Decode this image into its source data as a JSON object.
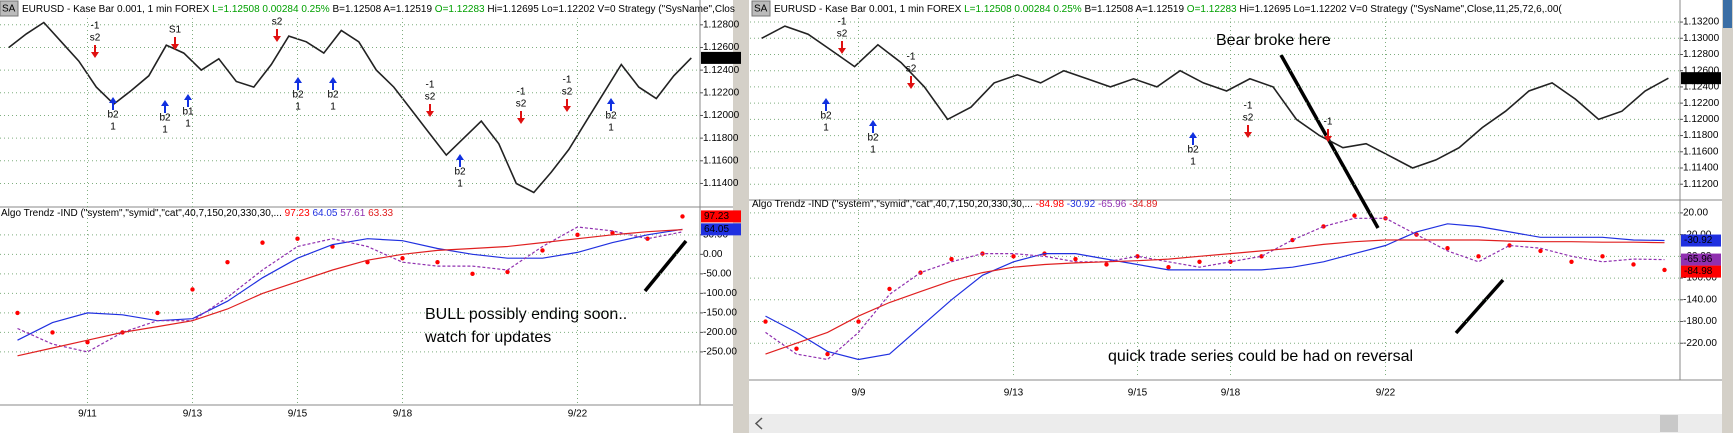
{
  "panels": [
    {
      "header": {
        "badge": "SA",
        "symbol": "EURUSD - Kase Bar 0.001, 1 min  FOREX",
        "last": "L=1.12508  0.00284  0.25%",
        "bidask": "B=1.12508  A=1.12519",
        "open": "O=1.12283",
        "rest": "Hi=1.12695  Lo=1.12202  V=0  Strategy (\"SysName\",Clos"
      },
      "price": {
        "type": "line",
        "color": "#222222",
        "ylim": [
          1.1121,
          1.1286
        ],
        "yticks": [
          {
            "value": 1.128,
            "label": "1.12800"
          },
          {
            "value": 1.126,
            "label": "1.12600"
          },
          {
            "value": 1.124,
            "label": "1.12400"
          },
          {
            "value": 1.122,
            "label": "1.12200"
          },
          {
            "value": 1.12,
            "label": "1.12000"
          },
          {
            "value": 1.118,
            "label": "1.11800"
          },
          {
            "value": 1.116,
            "label": "1.11600"
          },
          {
            "value": 1.114,
            "label": "1.11400"
          }
        ],
        "values": [
          1.126,
          1.1272,
          1.1282,
          1.1265,
          1.1248,
          1.1225,
          1.121,
          1.1222,
          1.1235,
          1.1262,
          1.1255,
          1.124,
          1.125,
          1.123,
          1.1225,
          1.1245,
          1.127,
          1.1265,
          1.1255,
          1.1275,
          1.1265,
          1.124,
          1.1225,
          1.1205,
          1.1185,
          1.1165,
          1.118,
          1.1195,
          1.1175,
          1.114,
          1.1132,
          1.115,
          1.117,
          1.1195,
          1.122,
          1.1245,
          1.1225,
          1.1215,
          1.1235,
          1.12508
        ]
      },
      "indicator": {
        "type": "line",
        "title": "Algo Trendz -IND (\"system\",\"symid\",\"cat\",40,7,150,20,330,30,...",
        "grid": true,
        "ylim": [
          -386,
          88
        ],
        "yticks": [
          {
            "value": 50,
            "label": "50.00"
          },
          {
            "value": 0,
            "label": "0.00"
          },
          {
            "value": -50,
            "label": "-50.00"
          },
          {
            "value": -100,
            "label": "-100.00"
          },
          {
            "value": -150,
            "label": "-150.00"
          },
          {
            "value": -200,
            "label": "-200.00"
          },
          {
            "value": -250,
            "label": "-250.00"
          }
        ],
        "categories": [
          null,
          null,
          "9/11",
          null,
          null,
          "9/13",
          null,
          null,
          "9/15",
          null,
          null,
          "9/18",
          null,
          null,
          null,
          null,
          "9/22",
          null,
          null,
          null
        ],
        "series": [
          {
            "name": "97.23",
            "color": "#ff0000",
            "style": "dots",
            "axis_box": true,
            "values": [
              -150,
              -200,
              -225,
              -200,
              -150,
              -90,
              -20,
              30,
              40,
              20,
              -20,
              -10,
              -20,
              -50,
              -45,
              10,
              50,
              55,
              40,
              97.23
            ]
          },
          {
            "name": "64.05",
            "color": "#2030e0",
            "style": "solid",
            "axis_box": true,
            "values": [
              -220,
              -175,
              -150,
              -155,
              -170,
              -165,
              -120,
              -60,
              -10,
              25,
              40,
              35,
              15,
              0,
              -10,
              -10,
              5,
              30,
              50,
              64.05
            ]
          },
          {
            "name": "57.61",
            "color": "#9030b0",
            "style": "dashed",
            "axis_box": false,
            "values": [
              -190,
              -230,
              -250,
              -200,
              -170,
              -170,
              -110,
              -40,
              20,
              40,
              20,
              -20,
              -30,
              -30,
              -40,
              20,
              70,
              60,
              40,
              57.61
            ]
          },
          {
            "name": "63.33",
            "color": "#e02020",
            "style": "solid",
            "axis_box": false,
            "values": [
              -260,
              -240,
              -220,
              -200,
              -185,
              -170,
              -140,
              -100,
              -70,
              -40,
              -15,
              0,
              10,
              15,
              20,
              30,
              40,
              50,
              58,
              63.33
            ]
          }
        ]
      },
      "annotations": [
        "BULL possibly ending soon..",
        "watch for updates"
      ],
      "signals": [
        [
          "-1",
          "s2"
        ],
        [
          "S1"
        ],
        [
          "s2"
        ],
        [
          "b2",
          "1"
        ],
        [
          "b2",
          "1"
        ],
        [
          "b1",
          "1"
        ],
        [
          "b2",
          "1"
        ],
        [
          "b2",
          "1"
        ],
        [
          "-1",
          "s2"
        ],
        [
          "b2",
          "1"
        ],
        [
          "-1",
          "s2"
        ],
        [
          "-1",
          "s2"
        ],
        [
          "b2",
          "1"
        ]
      ]
    },
    {
      "header": {
        "badge": "SA",
        "symbol": "EURUSD - Kase Bar 0.001, 1 min  FOREX",
        "last": "L=1.12508  0.00284  0.25%",
        "bidask": "B=1.12508  A=1.12519",
        "open": "O=1.12283",
        "rest": "Hi=1.12695  Lo=1.12202  V=0  Strategy (\"SysName\",Close,11,25,72,6,.00("
      },
      "price": {
        "type": "line",
        "color": "#222222",
        "ylim": [
          1.1103,
          1.1325
        ],
        "yticks": [
          {
            "value": 1.132,
            "label": "1.13200"
          },
          {
            "value": 1.13,
            "label": "1.13000"
          },
          {
            "value": 1.128,
            "label": "1.12800"
          },
          {
            "value": 1.126,
            "label": "1.12600"
          },
          {
            "value": 1.124,
            "label": "1.12400"
          },
          {
            "value": 1.122,
            "label": "1.12200"
          },
          {
            "value": 1.12,
            "label": "1.12000"
          },
          {
            "value": 1.118,
            "label": "1.11800"
          },
          {
            "value": 1.116,
            "label": "1.11600"
          },
          {
            "value": 1.114,
            "label": "1.11400"
          },
          {
            "value": 1.112,
            "label": "1.11200"
          }
        ],
        "values": [
          1.13,
          1.1315,
          1.1305,
          1.1285,
          1.1265,
          1.1292,
          1.127,
          1.124,
          1.12,
          1.1215,
          1.1245,
          1.1255,
          1.1245,
          1.126,
          1.125,
          1.124,
          1.125,
          1.124,
          1.126,
          1.1245,
          1.1235,
          1.125,
          1.124,
          1.12,
          1.118,
          1.1165,
          1.117,
          1.1155,
          1.114,
          1.115,
          1.1165,
          1.119,
          1.121,
          1.1235,
          1.1245,
          1.1225,
          1.12,
          1.121,
          1.1235,
          1.12508
        ]
      },
      "indicator": {
        "type": "line",
        "title": "Algo Trendz -IND (\"system\",\"symid\",\"cat\",40,7,150,20,330,30,...",
        "grid": true,
        "ylim": [
          -284,
          29
        ],
        "yticks": [
          {
            "value": 20,
            "label": "20.00"
          },
          {
            "value": -20,
            "label": "-20.00"
          },
          {
            "value": -60,
            "label": "-60.00"
          },
          {
            "value": -100,
            "label": "-100.00"
          },
          {
            "value": -140,
            "label": "-140.00"
          },
          {
            "value": -180,
            "label": "-180.00"
          },
          {
            "value": -220,
            "label": "-220.00"
          }
        ],
        "categories": [
          null,
          null,
          null,
          "9/9",
          null,
          null,
          null,
          null,
          "9/13",
          null,
          null,
          null,
          "9/15",
          null,
          null,
          "9/18",
          null,
          null,
          null,
          null,
          "9/22",
          null,
          null,
          null,
          null,
          null,
          null,
          null,
          null,
          null
        ],
        "series": [
          {
            "name": "-84.98",
            "color": "#ff0000",
            "style": "dots",
            "axis_box": true,
            "values": [
              -180,
              -230,
              -240,
              -180,
              -120,
              -90,
              -65,
              -55,
              -60,
              -55,
              -65,
              -75,
              -60,
              -80,
              -70,
              -70,
              -60,
              -30,
              -5,
              15,
              10,
              -20,
              -45,
              -60,
              -40,
              -50,
              -70,
              -60,
              -75,
              -84.98
            ]
          },
          {
            "name": "-30.92",
            "color": "#2030e0",
            "style": "solid",
            "axis_box": true,
            "values": [
              -170,
              -200,
              -235,
              -250,
              -240,
              -190,
              -140,
              -95,
              -70,
              -55,
              -55,
              -65,
              -75,
              -85,
              -85,
              -85,
              -85,
              -80,
              -70,
              -55,
              -40,
              -15,
              0,
              -5,
              -15,
              -25,
              -25,
              -25,
              -30,
              -30.92
            ]
          },
          {
            "name": "-65.96",
            "color": "#9030b0",
            "style": "dashed",
            "axis_box": true,
            "values": [
              -200,
              -240,
              -250,
              -200,
              -130,
              -90,
              -70,
              -55,
              -55,
              -60,
              -70,
              -70,
              -60,
              -70,
              -80,
              -70,
              -60,
              -30,
              -5,
              10,
              10,
              -20,
              -50,
              -70,
              -40,
              -45,
              -60,
              -70,
              -65,
              -65.96
            ]
          },
          {
            "name": "-34.89",
            "color": "#e02020",
            "style": "solid",
            "axis_box": false,
            "values": [
              -240,
              -220,
              -200,
              -170,
              -145,
              -125,
              -105,
              -90,
              -80,
              -75,
              -72,
              -70,
              -68,
              -65,
              -60,
              -55,
              -50,
              -45,
              -38,
              -33,
              -30,
              -30,
              -30,
              -30,
              -32,
              -33,
              -33,
              -34,
              -34,
              -34.89
            ]
          }
        ]
      },
      "annotations": [
        "Bear broke here",
        "quick trade series could be had on reversal"
      ],
      "signals": [
        [
          "-1",
          "s2"
        ],
        [
          "-1",
          "s2"
        ],
        [
          "b2",
          "1"
        ],
        [
          "b2",
          "1"
        ],
        [
          "-1",
          "s2"
        ],
        [
          "b2",
          "1"
        ],
        [
          "-1"
        ]
      ]
    }
  ]
}
